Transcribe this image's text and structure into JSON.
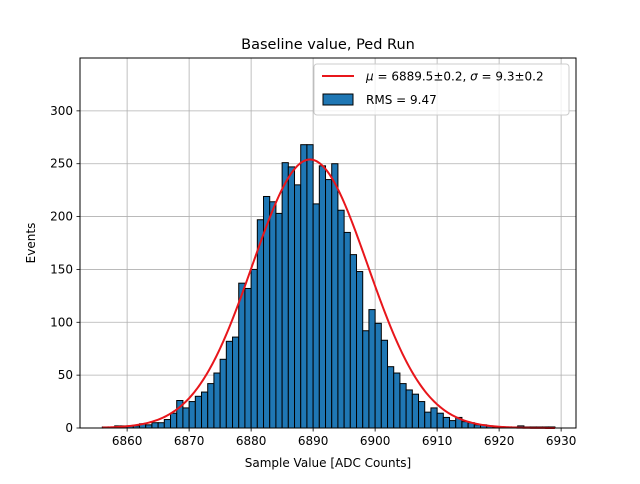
{
  "chart_data": {
    "type": "bar",
    "title": "Baseline value, Ped Run",
    "xlabel": "Sample Value [ADC Counts]",
    "ylabel": "Events",
    "xlim": [
      6852.4,
      6932.4
    ],
    "ylim": [
      0,
      350
    ],
    "x_ticks": [
      6860,
      6870,
      6880,
      6890,
      6900,
      6910,
      6920,
      6930
    ],
    "y_ticks": [
      0,
      50,
      100,
      150,
      200,
      250,
      300
    ],
    "grid": true,
    "legend_position": "top-right",
    "histogram": {
      "name": "RMS = 9.47",
      "bin_start": 6856,
      "bin_width": 1,
      "values": [
        1,
        0,
        2,
        2,
        2,
        2,
        4,
        3,
        5,
        5,
        8,
        14,
        26,
        19,
        25,
        30,
        34,
        42,
        52,
        65,
        82,
        86,
        137,
        132,
        150,
        197,
        219,
        214,
        203,
        251,
        247,
        230,
        268,
        268,
        212,
        248,
        235,
        250,
        206,
        185,
        164,
        148,
        92,
        112,
        99,
        83,
        58,
        52,
        42,
        36,
        32,
        25,
        15,
        19,
        14,
        10,
        7,
        10,
        6,
        5,
        3,
        3,
        2,
        1,
        1,
        1,
        1,
        2,
        1,
        1,
        1,
        1,
        1
      ],
      "fill_color": "#1f77b4",
      "edge_color": "#000000"
    },
    "fit": {
      "name": "$\\mu = 6889.5\\pm0.2$, $\\sigma = 9.3\\pm0.2$",
      "mu": 6889.5,
      "sigma": 9.3,
      "amplitude": 254,
      "color": "#e8161b"
    },
    "legend": {
      "fit_label_parts": [
        "μ",
        " = 6889.5±0.2, ",
        "σ",
        " = 9.3±0.2"
      ],
      "hist_label": "RMS = 9.47"
    }
  }
}
